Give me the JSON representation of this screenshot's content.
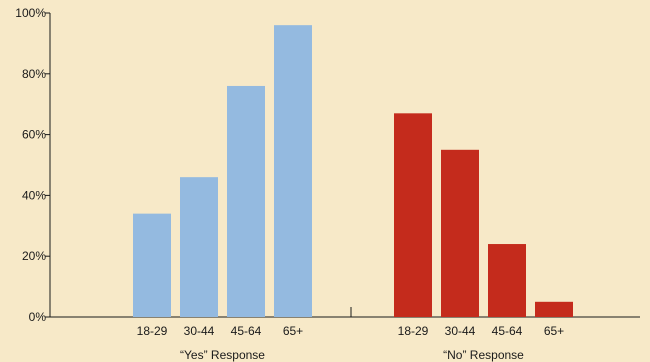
{
  "chart_data": {
    "type": "bar",
    "title": "",
    "xlabel": "",
    "ylabel": "",
    "ylim": [
      0,
      100
    ],
    "yticks": [
      0,
      20,
      40,
      60,
      80,
      100
    ],
    "ytick_labels": [
      "0%",
      "20%",
      "40%",
      "60%",
      "80%",
      "100%"
    ],
    "grid": false,
    "legend": "none",
    "groups": [
      {
        "label": "“Yes” Response",
        "color": "#94bae0",
        "categories": [
          "18-29",
          "30-44",
          "45-64",
          "65+"
        ],
        "values": [
          34,
          46,
          76,
          96
        ]
      },
      {
        "label": "“No” Response",
        "color": "#c42b1c",
        "categories": [
          "18-29",
          "30-44",
          "45-64",
          "65+"
        ],
        "values": [
          67,
          55,
          24,
          5
        ]
      }
    ]
  }
}
